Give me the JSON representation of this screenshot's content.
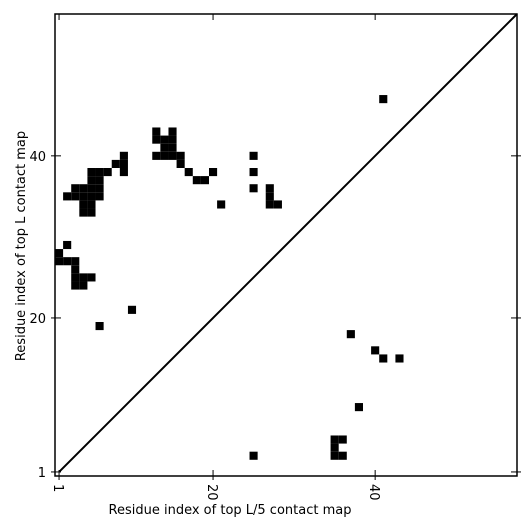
{
  "chart_data": {
    "type": "heatmap",
    "title": "",
    "xlabel": "Residue index of top L/5 contact map",
    "ylabel": "Residue index of top L contact map",
    "xlim": [
      0.5,
      57.5
    ],
    "ylim": [
      0.5,
      57.5
    ],
    "xticks": [
      1,
      20,
      40
    ],
    "yticks": [
      1,
      20,
      40
    ],
    "grid": false,
    "diagonal_line": true,
    "cell_color": "#000000",
    "cells": [
      [
        1,
        28
      ],
      [
        1,
        27
      ],
      [
        2,
        29
      ],
      [
        2,
        27
      ],
      [
        3,
        27
      ],
      [
        3,
        26
      ],
      [
        3,
        25
      ],
      [
        4,
        25
      ],
      [
        5,
        25
      ],
      [
        3,
        24
      ],
      [
        4,
        24
      ],
      [
        10,
        21
      ],
      [
        6,
        19
      ],
      [
        3,
        35
      ],
      [
        2,
        35
      ],
      [
        4,
        36
      ],
      [
        3,
        36
      ],
      [
        5,
        36
      ],
      [
        6,
        36
      ],
      [
        4,
        35
      ],
      [
        5,
        35
      ],
      [
        4,
        34
      ],
      [
        5,
        34
      ],
      [
        4,
        33
      ],
      [
        5,
        33
      ],
      [
        6,
        35
      ],
      [
        5,
        38
      ],
      [
        6,
        38
      ],
      [
        5,
        37
      ],
      [
        6,
        37
      ],
      [
        7,
        38
      ],
      [
        8,
        39
      ],
      [
        9,
        39
      ],
      [
        9,
        40
      ],
      [
        9,
        38
      ],
      [
        13,
        43
      ],
      [
        14,
        42
      ],
      [
        15,
        43
      ],
      [
        13,
        42
      ],
      [
        15,
        42
      ],
      [
        14,
        41
      ],
      [
        15,
        41
      ],
      [
        14,
        40
      ],
      [
        15,
        40
      ],
      [
        13,
        40
      ],
      [
        16,
        40
      ],
      [
        16,
        39
      ],
      [
        17,
        38
      ],
      [
        18,
        37
      ],
      [
        19,
        37
      ],
      [
        20,
        38
      ],
      [
        21,
        34
      ],
      [
        25,
        40
      ],
      [
        25,
        38
      ],
      [
        25,
        36
      ],
      [
        27,
        36
      ],
      [
        27,
        35
      ],
      [
        27,
        34
      ],
      [
        28,
        34
      ],
      [
        41,
        47
      ],
      [
        37,
        18
      ],
      [
        40,
        16
      ],
      [
        41,
        15
      ],
      [
        43,
        15
      ],
      [
        38,
        9
      ],
      [
        35,
        5
      ],
      [
        36,
        5
      ],
      [
        35,
        4
      ],
      [
        35,
        3
      ],
      [
        36,
        3
      ],
      [
        25,
        3
      ]
    ]
  }
}
